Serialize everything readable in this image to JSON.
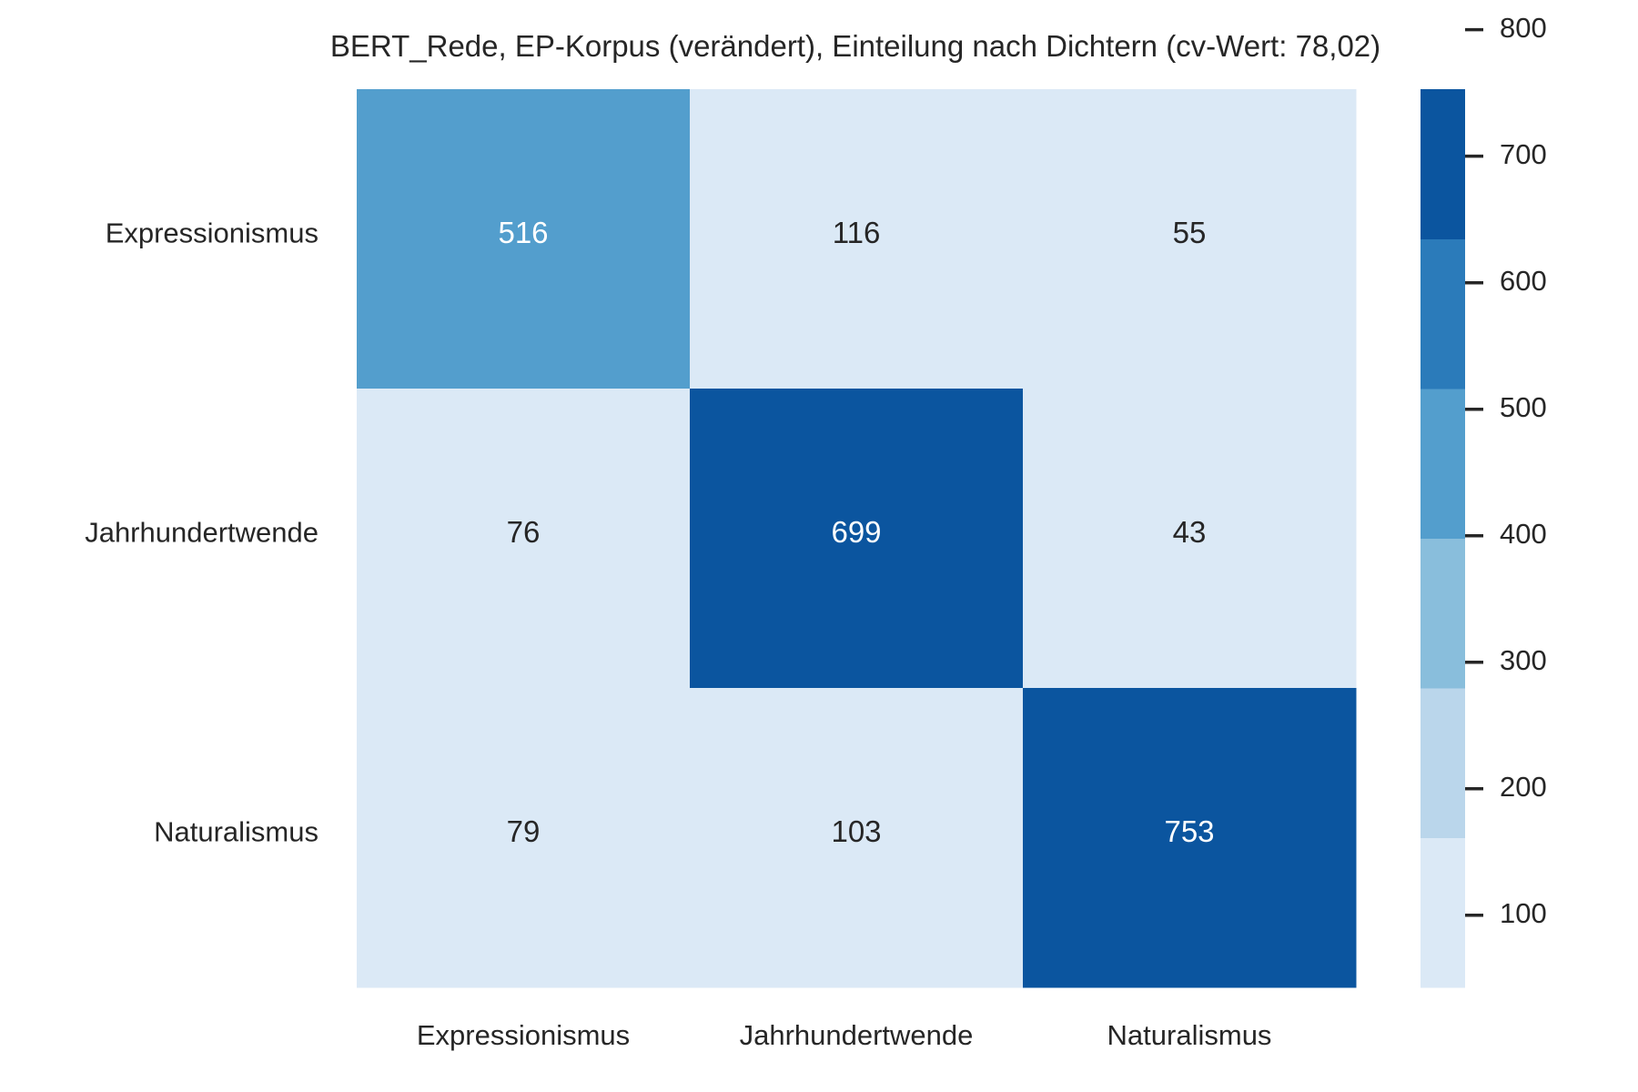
{
  "chart_data": {
    "type": "heatmap",
    "title": "BERT_Rede, EP-Korpus (verändert), Einteilung nach Dichtern (cv-Wert: 78,02)",
    "xlabel": "",
    "ylabel": "",
    "x_categories": [
      "Expressionismus",
      "Jahrhundertwende",
      "Naturalismus"
    ],
    "y_categories": [
      "Expressionismus",
      "Jahrhundertwende",
      "Naturalismus"
    ],
    "values": [
      [
        516,
        116,
        55
      ],
      [
        76,
        699,
        43
      ],
      [
        79,
        103,
        753
      ]
    ],
    "colorbar": {
      "ticks": [
        100,
        200,
        300,
        400,
        500,
        600,
        700,
        800
      ],
      "range": [
        43,
        753
      ],
      "bins": 6,
      "colors": [
        "#dbe9f6",
        "#bad6eb",
        "#89bedc",
        "#539ecd",
        "#2b7bba",
        "#0b559f"
      ]
    },
    "annotation_colors": {
      "dark_cell": "#ffffff",
      "light_cell": "#262626"
    }
  }
}
